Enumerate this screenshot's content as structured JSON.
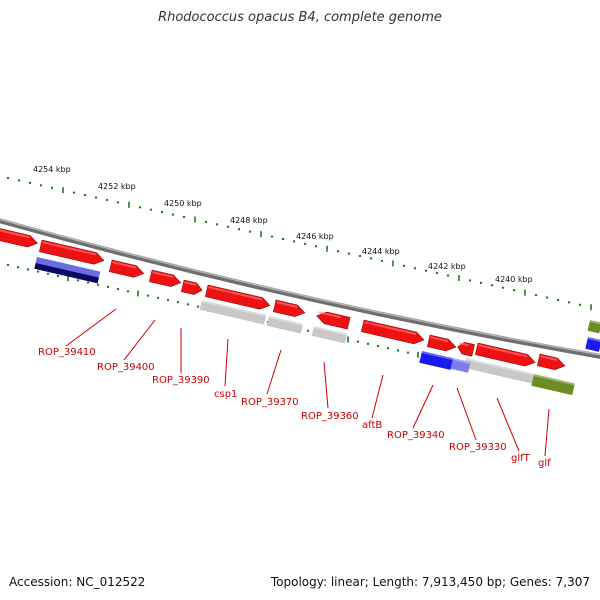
{
  "title": "Rhodococcus opacus B4, complete genome",
  "accession": "Accession: NC_012522",
  "summary": "Topology: linear; Length: 7,913,450 bp; Genes: 7,307",
  "kbp_labels": [
    "4254 kbp",
    "4252 kbp",
    "4250 kbp",
    "4248 kbp",
    "4246 kbp",
    "4244 kbp",
    "4242 kbp",
    "4240 kbp"
  ],
  "gene_labels": [
    "ROP_39410",
    "ROP_39400",
    "ROP_39390",
    "csp1",
    "ROP_39370",
    "ROP_39360",
    "aftB",
    "ROP_39340",
    "ROP_39330",
    "glfT",
    "glf"
  ],
  "colors": {
    "backbone": "#8a8a8a",
    "tick": "#1f7a1f",
    "gene_red": "#ee1111",
    "rna_gray": "#c8c8c8",
    "blue": "#1a1aee",
    "olive": "#6b8e23",
    "navy": "#0a0a66",
    "label_red": "#cc0000"
  }
}
